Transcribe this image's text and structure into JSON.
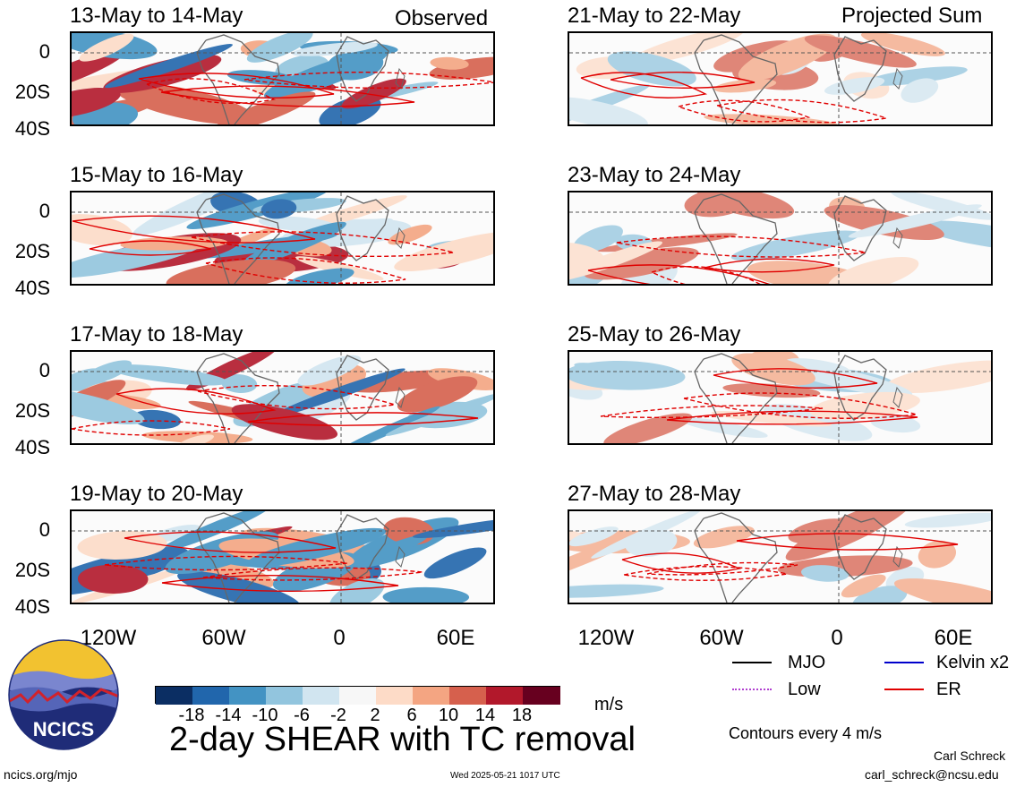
{
  "columns": {
    "left": {
      "title": "Observed"
    },
    "right": {
      "title": "Projected Sum"
    }
  },
  "panels": [
    {
      "label": "13-May to 14-May",
      "column": "left",
      "row": 0
    },
    {
      "label": "15-May to 16-May",
      "column": "left",
      "row": 1
    },
    {
      "label": "17-May to 18-May",
      "column": "left",
      "row": 2
    },
    {
      "label": "19-May to 20-May",
      "column": "left",
      "row": 3
    },
    {
      "label": "21-May to 22-May",
      "column": "right",
      "row": 0
    },
    {
      "label": "23-May to 24-May",
      "column": "right",
      "row": 1
    },
    {
      "label": "25-May to 26-May",
      "column": "right",
      "row": 2
    },
    {
      "label": "27-May to 28-May",
      "column": "right",
      "row": 3
    }
  ],
  "lat_ticks": [
    "0",
    "20S",
    "40S"
  ],
  "lon_ticks": [
    "120W",
    "60W",
    "0",
    "60E"
  ],
  "colorbar": {
    "unit": "m/s",
    "labels": [
      "-18",
      "-14",
      "-10",
      "-6",
      "-2",
      "2",
      "6",
      "10",
      "14",
      "18"
    ],
    "colors": [
      "#0b2e63",
      "#2166ac",
      "#4393c3",
      "#92c5de",
      "#d1e5f0",
      "#f7f7f7",
      "#fddbc7",
      "#f4a582",
      "#d6604d",
      "#b2182b",
      "#67001f"
    ]
  },
  "legend": {
    "items": [
      {
        "label": "MJO",
        "color": "#000000",
        "style": "solid"
      },
      {
        "label": "Kelvin x2",
        "color": "#0000cc",
        "style": "solid"
      },
      {
        "label": "Low",
        "color": "#b040d0",
        "style": "dotted"
      },
      {
        "label": "ER",
        "color": "#e00000",
        "style": "solid"
      }
    ],
    "contour_note": "Contours every 4 m/s"
  },
  "logo": {
    "text": "NCICS"
  },
  "main_title": "2-day SHEAR with TC removal",
  "footer": {
    "url": "ncics.org/mjo",
    "timestamp": "Wed 2025-05-21 1017 UTC",
    "author": "Carl Schreck",
    "email": "carl_schreck@ncsu.edu"
  }
}
